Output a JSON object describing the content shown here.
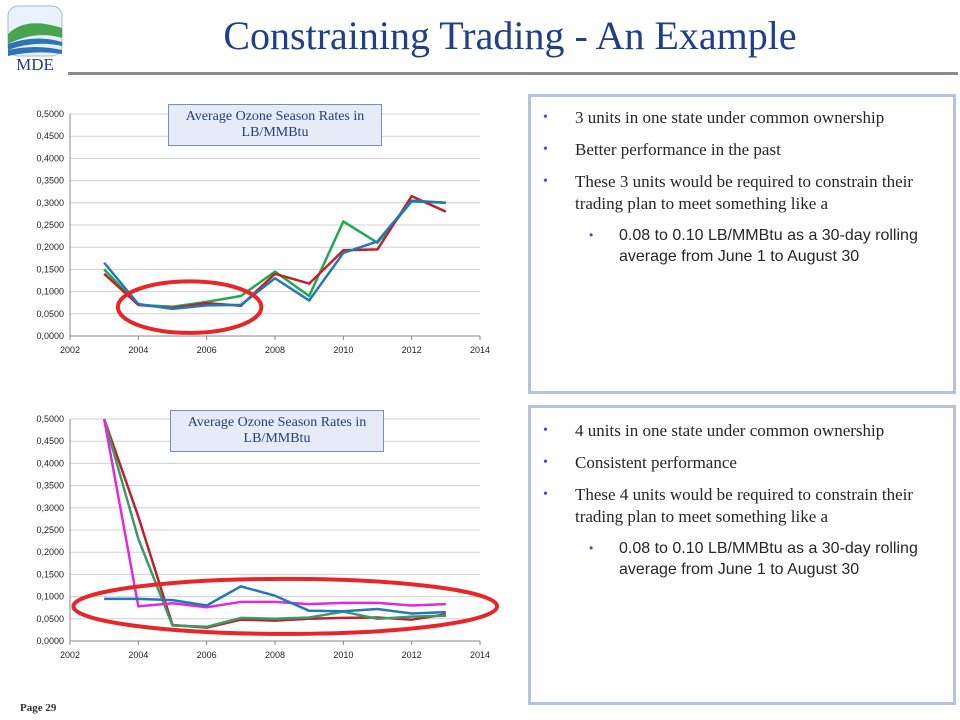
{
  "header": {
    "logo_text": "MDE",
    "title": "Constraining Trading - An Example"
  },
  "chart1_label": "Average Ozone Season Rates in LB/MMBtu",
  "chart2_label": "Average Ozone Season Rates in LB/MMBtu",
  "panel1": {
    "bullets": [
      "3 units in one state under common ownership",
      "Better performance in the past",
      "These 3 units would be required to constrain their trading plan to meet something like a"
    ],
    "sub": "0.08 to 0.10 LB/MMBtu as a 30-day rolling average from June 1 to August 30"
  },
  "panel2": {
    "bullets": [
      "4 units in one state under common ownership",
      "Consistent performance",
      "These 4 units would be required to constrain their trading plan to meet something like a"
    ],
    "sub": "0.08 to 0.10 LB/MMBtu as a 30-day rolling average from June 1 to August 30"
  },
  "footer": {
    "page": "Page 29"
  },
  "colors": {
    "title": "#1f3f86",
    "highlight_ellipse": "#e8262a"
  },
  "chart_data": [
    {
      "type": "line",
      "title": "Average Ozone Season Rates in LB/MMBtu",
      "xlim": [
        2002,
        2014
      ],
      "ylim": [
        0,
        0.5
      ],
      "x_ticks": [
        "2002",
        "2004",
        "2006",
        "2008",
        "2010",
        "2012",
        "2014"
      ],
      "y_ticks": [
        "0,0000",
        "0,0500",
        "0,1000",
        "0,1500",
        "0,2000",
        "0,2500",
        "0,3000",
        "0,3500",
        "0,4000",
        "0,4500",
        "0,5000"
      ],
      "x": [
        2003,
        2004,
        2005,
        2006,
        2007,
        2008,
        2009,
        2010,
        2011,
        2012,
        2013
      ],
      "series": [
        {
          "color": "#1faa4f",
          "values": [
            0.15,
            0.07,
            0.066,
            0.077,
            0.09,
            0.145,
            0.09,
            0.258,
            0.21,
            0.303,
            0.3
          ]
        },
        {
          "color": "#c0202b",
          "values": [
            0.14,
            0.07,
            0.063,
            0.074,
            0.068,
            0.14,
            0.118,
            0.193,
            0.195,
            0.315,
            0.28
          ]
        },
        {
          "color": "#2478b8",
          "values": [
            0.165,
            0.072,
            0.061,
            0.069,
            0.07,
            0.13,
            0.08,
            0.187,
            0.213,
            0.305,
            0.3
          ]
        }
      ],
      "highlight": {
        "x_center": 2005.5,
        "y_center": 0.065,
        "x_radius": 2.1,
        "y_radius": 0.058
      }
    },
    {
      "type": "line",
      "title": "Average Ozone Season Rates in LB/MMBtu",
      "xlim": [
        2002,
        2014
      ],
      "ylim": [
        0,
        0.5
      ],
      "x_ticks": [
        "2002",
        "2004",
        "2006",
        "2008",
        "2010",
        "2012",
        "2014"
      ],
      "y_ticks": [
        "0,0000",
        "0,0500",
        "0,1000",
        "0,1500",
        "0,2000",
        "0,2500",
        "0,3000",
        "0,3500",
        "0,4000",
        "0,4500",
        "0,5000"
      ],
      "x": [
        2003,
        2004,
        2005,
        2006,
        2007,
        2008,
        2009,
        2010,
        2011,
        2012,
        2013
      ],
      "series": [
        {
          "color": "#c0202b",
          "values": [
            0.5,
            0.28,
            0.036,
            0.03,
            0.048,
            0.046,
            0.05,
            0.052,
            0.053,
            0.048,
            0.06
          ]
        },
        {
          "color": "#3a9b6a",
          "values": [
            0.5,
            0.23,
            0.035,
            0.032,
            0.052,
            0.05,
            0.053,
            0.066,
            0.05,
            0.055,
            0.057
          ]
        },
        {
          "color": "#e02bd8",
          "values": [
            0.5,
            0.078,
            0.085,
            0.076,
            0.088,
            0.088,
            0.083,
            0.086,
            0.086,
            0.08,
            0.083
          ]
        },
        {
          "color": "#2478b8",
          "values": [
            0.095,
            0.095,
            0.092,
            0.08,
            0.123,
            0.102,
            0.068,
            0.067,
            0.072,
            0.062,
            0.065
          ]
        }
      ],
      "highlight": {
        "x_center": 2008.3,
        "y_center": 0.078,
        "x_radius": 6.2,
        "y_radius": 0.062
      }
    }
  ]
}
